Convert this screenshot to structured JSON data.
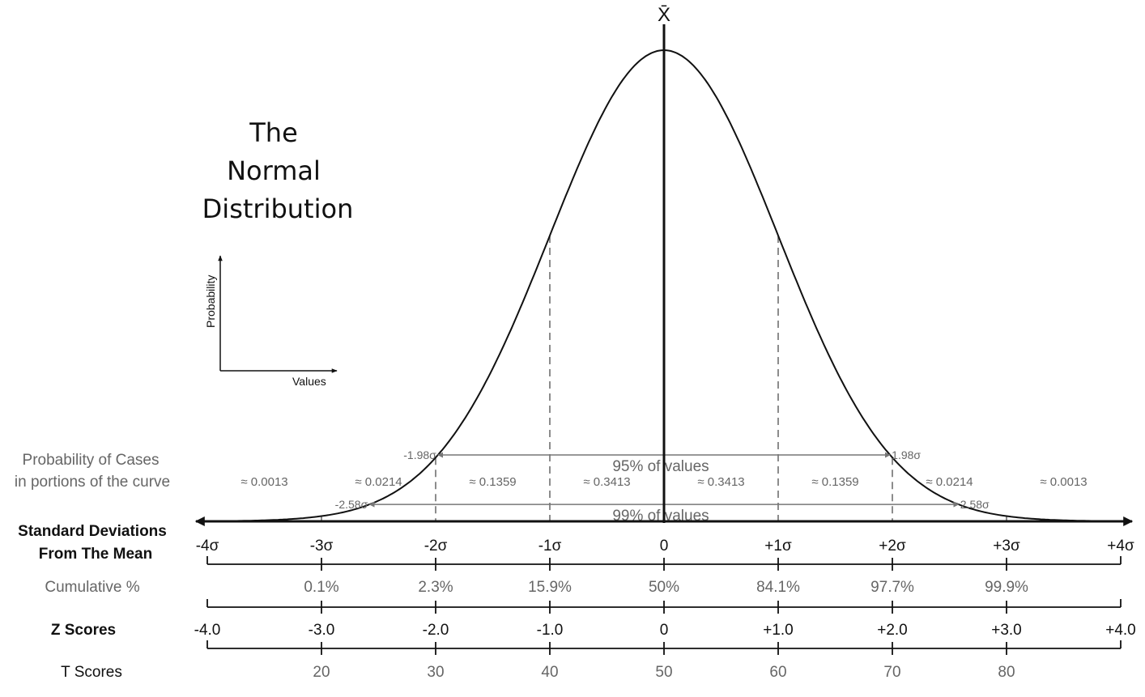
{
  "title_lines": [
    "The",
    "Normal",
    "Distribution"
  ],
  "mean_symbol": "X̄",
  "inset": {
    "y_label": "Probability",
    "x_label": "Values"
  },
  "intervals": [
    {
      "left": "-1.98σ",
      "right": "1.98σ",
      "label": "95% of values",
      "z": 1.98
    },
    {
      "left": "-2.58σ",
      "right": "2.58σ",
      "label": "99% of values",
      "z": 2.58
    }
  ],
  "portions": {
    "label_lines": [
      "Probability of Cases",
      "in portions of the curve"
    ],
    "values": [
      "≈ 0.0013",
      "≈ 0.0214",
      "≈ 0.1359",
      "≈ 0.3413",
      "≈ 0.3413",
      "≈ 0.1359",
      "≈ 0.0214",
      "≈ 0.0013"
    ]
  },
  "std_devs": {
    "label_lines": [
      "Standard Deviations",
      "From The Mean"
    ],
    "ticks": [
      "-4σ",
      "-3σ",
      "-2σ",
      "-1σ",
      "0",
      "+1σ",
      "+2σ",
      "+3σ",
      "+4σ"
    ]
  },
  "cumulative": {
    "label": "Cumulative %",
    "values": [
      "0.1%",
      "2.3%",
      "15.9%",
      "50%",
      "84.1%",
      "97.7%",
      "99.9%"
    ]
  },
  "z_scores": {
    "label": "Z Scores",
    "values": [
      "-4.0",
      "-3.0",
      "-2.0",
      "-1.0",
      "0",
      "+1.0",
      "+2.0",
      "+3.0",
      "+4.0"
    ]
  },
  "t_scores": {
    "label": "T Scores",
    "values": [
      "20",
      "30",
      "40",
      "50",
      "60",
      "70",
      "80"
    ]
  }
}
